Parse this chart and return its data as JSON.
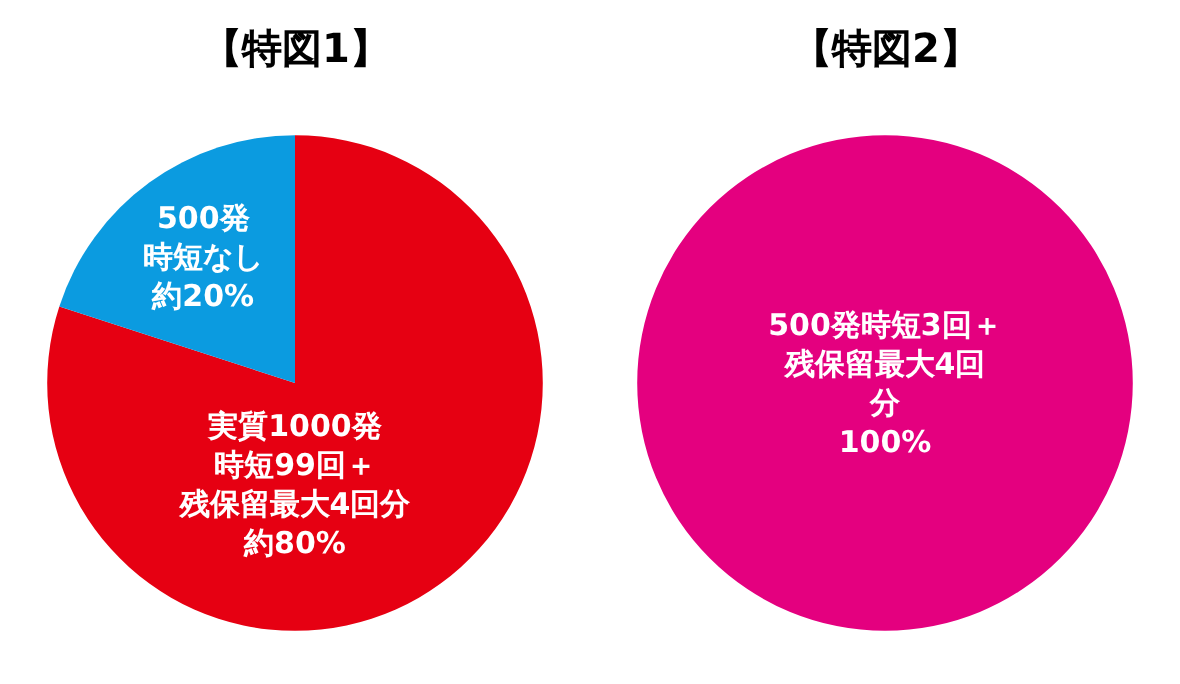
{
  "chart_data": [
    {
      "type": "pie",
      "title": "【特図1】",
      "categories": [
        "実質1000発時短99回＋残保留最大4回分",
        "500発時短なし"
      ],
      "values": [
        80,
        20
      ],
      "value_labels": [
        "約80%",
        "約20%"
      ],
      "colors": [
        "#e60012",
        "#0b9be0"
      ]
    },
    {
      "type": "pie",
      "title": "【特図2】",
      "categories": [
        "500発時短3回＋残保留最大4回分"
      ],
      "values": [
        100
      ],
      "value_labels": [
        "100%"
      ],
      "colors": [
        "#e4007f"
      ]
    }
  ]
}
